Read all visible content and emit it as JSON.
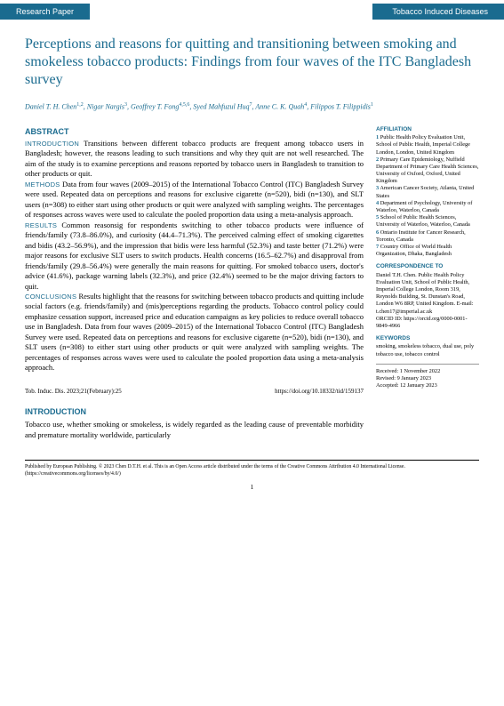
{
  "header": {
    "left": "Research Paper",
    "right": "Tobacco Induced Diseases"
  },
  "title": "Perceptions and reasons for quitting and transitioning between smoking and smokeless tobacco products: Findings from four waves of the ITC Bangladesh survey",
  "authors_html": "Daniel T. H. Chen<sup>1,2</sup>, Nigar Nargis<sup>3</sup>, Geoffrey T. Fong<sup>4,5,6</sup>, Syed Mahfuzul Huq<sup>7</sup>, Anne C. K. Quah<sup>4</sup>, Filippos T. Filippidis<sup>1</sup>",
  "abstract": {
    "heading": "ABSTRACT",
    "intro_label": "INTRODUCTION",
    "intro": " Transitions between different tobacco products are frequent among tobacco users in Bangladesh; however, the reasons leading to such transitions and why they quit are not well researched. The aim of the study is to examine perceptions and reasons reported by tobacco users in Bangladesh to transition to other products or quit.",
    "methods_label": "METHODS",
    "methods": " Data from four waves (2009–2015) of the International Tobacco Control (ITC) Bangladesh Survey were used. Repeated data on perceptions and reasons for exclusive cigarette (n=520), bidi (n=130), and SLT users (n=308) to either start using other products or quit were analyzed with sampling weights. The percentages of responses across waves were used to calculate the pooled proportion data using a meta-analysis approach.",
    "results_label": "RESULTS",
    "results": " Common reasonsig for respondents switching to other tobacco products were influence of friends/family (73.8–86.0%), and curiosity (44.4–71.3%). The perceived calming effect of smoking cigarettes and bidis (43.2–56.9%), and the impression that bidis were less harmful (52.3%) and taste better (71.2%) were major reasons for exclusive SLT users to switch products. Health concerns (16.5–62.7%) and disapproval from friends/family (29.8–56.4%) were generally the main reasons for quitting. For smoked tobacco users, doctor's advice (41.6%), package warning labels (32.3%), and price (32.4%) seemed to be the major driving factors to quit.",
    "conclusions_label": "CONCLUSIONS",
    "conclusions": " Results highlight that the reasons for switching between tobacco products and quitting include social factors (e.g. friends/family) and (mis)perceptions regarding the products. Tobacco control policy could emphasize cessation support, increased price and education campaigns as key policies to reduce overall tobacco use in Bangladesh. Data from four waves (2009–2015) of the International Tobacco Control (ITC) Bangladesh Survey were used. Repeated data on perceptions and reasons for exclusive cigarette (n=520), bidi (n=130), and SLT users (n=308) to either start using other products or quit were analyzed with sampling weights. The percentages of responses across waves were used to calculate the pooled proportion data using a meta-analysis approach."
  },
  "sidebar": {
    "affiliation_heading": "AFFILIATION",
    "affiliations": [
      "Public Health Policy Evaluation Unit, School of Public Health, Imperial College London, London, United Kingdom",
      "Primary Care Epidemiology, Nuffield Department of Primary Care Health Sciences, University of Oxford, Oxford, United Kingdom",
      "American Cancer Society, Atlanta, United States",
      "Department of Psychology, University of Waterloo, Waterloo, Canada",
      "School of Public Health Sciences, University of Waterloo, Waterloo, Canada",
      "Ontario Institute for Cancer Research, Toronto, Canada",
      "Country Office of World Health Organization, Dhaka, Bangladesh"
    ],
    "correspondence_heading": "CORRESPONDENCE TO",
    "correspondence": "Daniel T.H. Chen. Public Health Policy Evaluation Unit, School of Public Health, Imperial College London, Room 319, Reynolds Building, St. Dunstan's Road, London W6 8RP, United Kingdom. E-mail: t.chen17@imperial.ac.uk\nORCID ID: https://orcid.org/0000-0001-9849-4966",
    "keywords_heading": "KEYWORDS",
    "keywords": "smoking, smokeless tobacco, dual use, poly tobacco use, tobacco control",
    "dates": {
      "received": "Received: 1 November 2022",
      "revised": "Revised: 9 January 2023",
      "accepted": "Accepted: 12 January 2023"
    }
  },
  "footer_row": {
    "left": "Tob. Induc. Dis. 2023;21(February):25",
    "right": "https://doi.org/10.18332/tid/159137"
  },
  "introduction": {
    "heading": "INTRODUCTION",
    "text": "Tobacco use, whether smoking or smokeless, is widely regarded as the leading cause of preventable morbidity and premature mortality worldwide, particularly"
  },
  "license": "Published by European Publishing. © 2023 Chen D.T.H. et al. This is an Open Access article distributed under the terms of the Creative Commons Attribution 4.0 International License. (https://creativecommons.org/licenses/by/4.0/)",
  "page_number": "1"
}
